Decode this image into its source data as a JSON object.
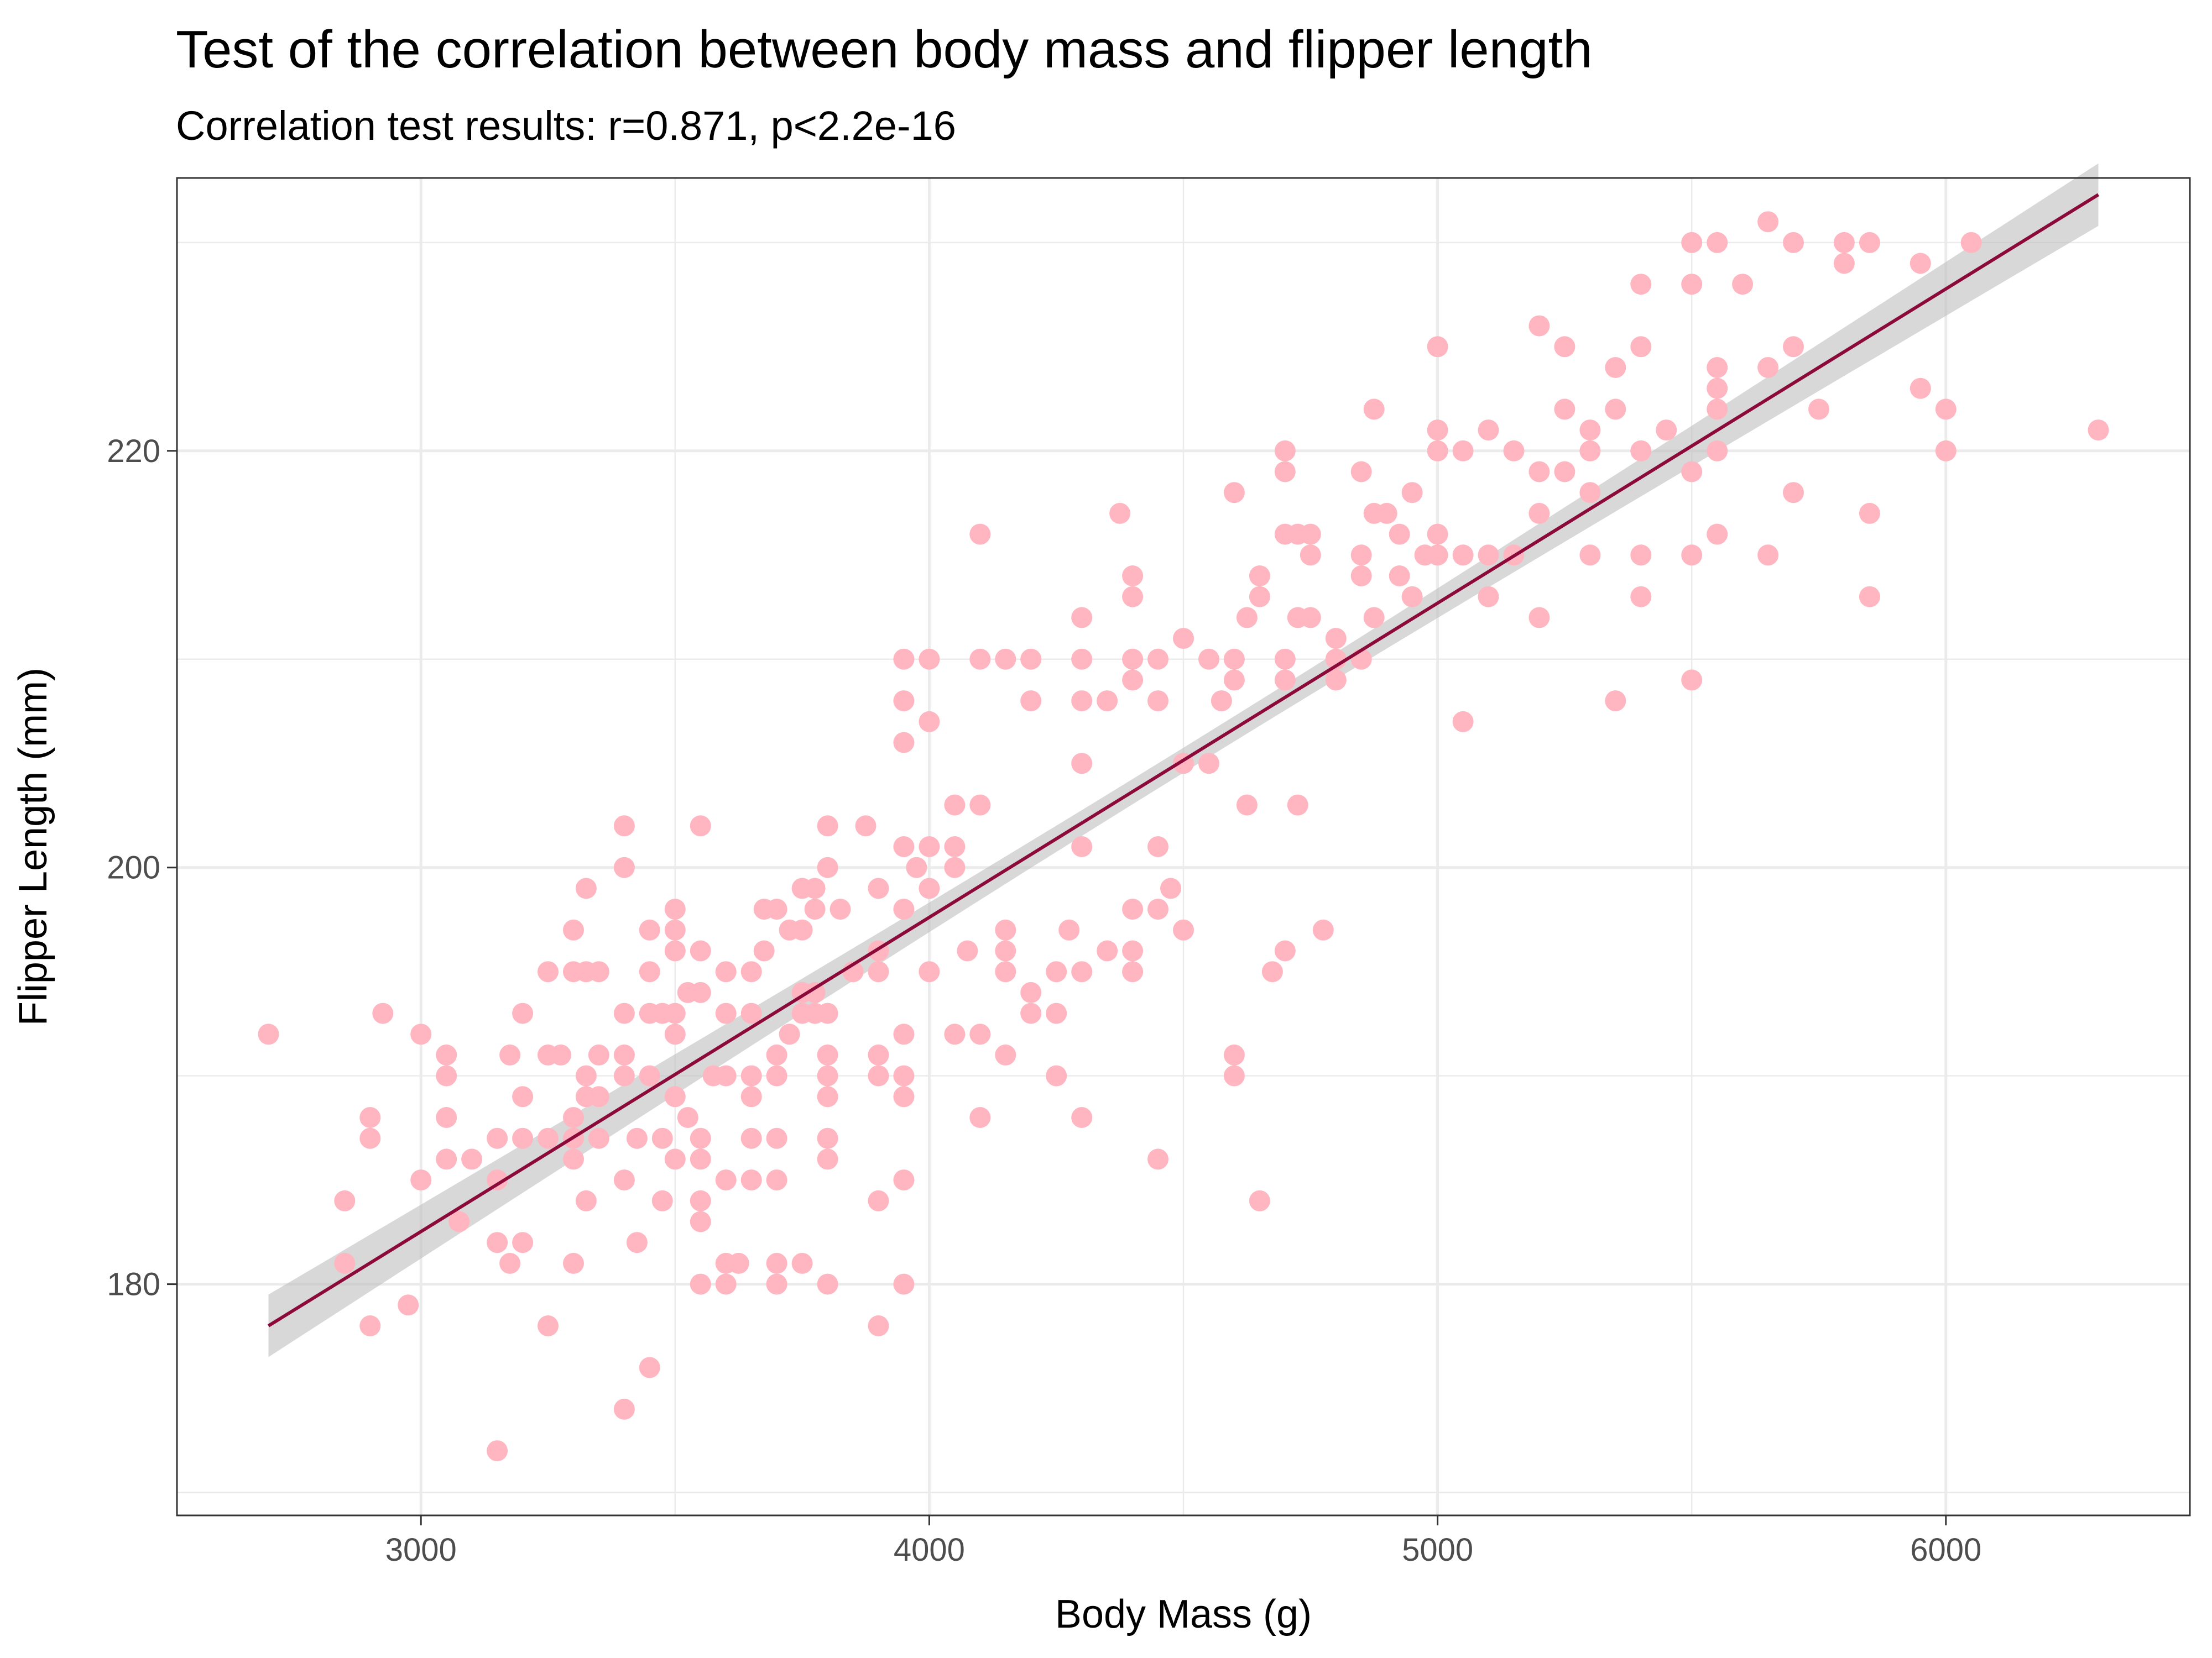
{
  "chart_data": {
    "type": "scatter",
    "title": "Test of the correlation between body mass and flipper length",
    "subtitle": "Correlation test results: r=0.871, p<2.2e-16",
    "xlabel": "Body Mass (g)",
    "ylabel": "Flipper Length (mm)",
    "xlim": [
      2520,
      6480
    ],
    "ylim": [
      168.9,
      233.1
    ],
    "x_ticks": [
      3000,
      4000,
      5000,
      6000
    ],
    "y_ticks": [
      180,
      200,
      220
    ],
    "x_tick_labels": [
      "3000",
      "4000",
      "5000",
      "6000"
    ],
    "y_tick_labels": [
      "180",
      "200",
      "220"
    ],
    "grid": true,
    "legend": "none",
    "point_color": "#FFB6C1",
    "line_color": "#8B0A3A",
    "band_color": "#BEBEBE",
    "trend_line": {
      "method": "linear",
      "x": [
        2700,
        6300
      ],
      "y": [
        178.0,
        232.3
      ],
      "ci_half_width_ends": 1.5,
      "ci_half_width_center": 0.6
    },
    "points": [
      [
        2700,
        192
      ],
      [
        2850,
        181
      ],
      [
        2850,
        184
      ],
      [
        2900,
        178
      ],
      [
        2900,
        187
      ],
      [
        2900,
        188
      ],
      [
        2925,
        193
      ],
      [
        2975,
        179
      ],
      [
        3000,
        185
      ],
      [
        3000,
        192
      ],
      [
        3050,
        186
      ],
      [
        3050,
        188
      ],
      [
        3050,
        190
      ],
      [
        3050,
        191
      ],
      [
        3075,
        183
      ],
      [
        3100,
        186
      ],
      [
        3150,
        172
      ],
      [
        3150,
        182
      ],
      [
        3150,
        185
      ],
      [
        3150,
        187
      ],
      [
        3175,
        181
      ],
      [
        3175,
        191
      ],
      [
        3200,
        182
      ],
      [
        3200,
        187
      ],
      [
        3200,
        189
      ],
      [
        3200,
        193
      ],
      [
        3250,
        178
      ],
      [
        3250,
        187
      ],
      [
        3250,
        191
      ],
      [
        3250,
        195
      ],
      [
        3275,
        191
      ],
      [
        3300,
        181
      ],
      [
        3300,
        186
      ],
      [
        3300,
        187
      ],
      [
        3300,
        188
      ],
      [
        3300,
        195
      ],
      [
        3300,
        197
      ],
      [
        3325,
        184
      ],
      [
        3325,
        189
      ],
      [
        3325,
        190
      ],
      [
        3325,
        195
      ],
      [
        3325,
        199
      ],
      [
        3350,
        187
      ],
      [
        3350,
        189
      ],
      [
        3350,
        191
      ],
      [
        3350,
        195
      ],
      [
        3400,
        174
      ],
      [
        3400,
        185
      ],
      [
        3400,
        190
      ],
      [
        3400,
        191
      ],
      [
        3400,
        193
      ],
      [
        3400,
        200
      ],
      [
        3400,
        202
      ],
      [
        3425,
        182
      ],
      [
        3425,
        187
      ],
      [
        3450,
        176
      ],
      [
        3450,
        190
      ],
      [
        3450,
        193
      ],
      [
        3450,
        195
      ],
      [
        3450,
        197
      ],
      [
        3475,
        184
      ],
      [
        3475,
        187
      ],
      [
        3475,
        193
      ],
      [
        3500,
        186
      ],
      [
        3500,
        189
      ],
      [
        3500,
        192
      ],
      [
        3500,
        193
      ],
      [
        3500,
        196
      ],
      [
        3500,
        197
      ],
      [
        3500,
        198
      ],
      [
        3525,
        188
      ],
      [
        3525,
        194
      ],
      [
        3550,
        180
      ],
      [
        3550,
        183
      ],
      [
        3550,
        184
      ],
      [
        3550,
        186
      ],
      [
        3550,
        187
      ],
      [
        3550,
        194
      ],
      [
        3550,
        196
      ],
      [
        3550,
        202
      ],
      [
        3575,
        190
      ],
      [
        3600,
        180
      ],
      [
        3600,
        181
      ],
      [
        3600,
        185
      ],
      [
        3600,
        190
      ],
      [
        3600,
        193
      ],
      [
        3600,
        195
      ],
      [
        3625,
        181
      ],
      [
        3650,
        185
      ],
      [
        3650,
        187
      ],
      [
        3650,
        189
      ],
      [
        3650,
        190
      ],
      [
        3650,
        193
      ],
      [
        3650,
        195
      ],
      [
        3675,
        196
      ],
      [
        3675,
        198
      ],
      [
        3700,
        180
      ],
      [
        3700,
        181
      ],
      [
        3700,
        185
      ],
      [
        3700,
        187
      ],
      [
        3700,
        190
      ],
      [
        3700,
        191
      ],
      [
        3700,
        198
      ],
      [
        3725,
        192
      ],
      [
        3725,
        197
      ],
      [
        3750,
        181
      ],
      [
        3750,
        193
      ],
      [
        3750,
        194
      ],
      [
        3750,
        197
      ],
      [
        3750,
        199
      ],
      [
        3775,
        193
      ],
      [
        3775,
        194
      ],
      [
        3775,
        198
      ],
      [
        3775,
        199
      ],
      [
        3800,
        180
      ],
      [
        3800,
        186
      ],
      [
        3800,
        187
      ],
      [
        3800,
        189
      ],
      [
        3800,
        190
      ],
      [
        3800,
        191
      ],
      [
        3800,
        193
      ],
      [
        3800,
        200
      ],
      [
        3800,
        202
      ],
      [
        3825,
        198
      ],
      [
        3850,
        195
      ],
      [
        3875,
        202
      ],
      [
        3900,
        178
      ],
      [
        3900,
        184
      ],
      [
        3900,
        190
      ],
      [
        3900,
        191
      ],
      [
        3900,
        195
      ],
      [
        3900,
        196
      ],
      [
        3900,
        199
      ],
      [
        3950,
        180
      ],
      [
        3950,
        185
      ],
      [
        3950,
        189
      ],
      [
        3950,
        190
      ],
      [
        3950,
        192
      ],
      [
        3950,
        198
      ],
      [
        3950,
        201
      ],
      [
        3950,
        206
      ],
      [
        3950,
        208
      ],
      [
        3950,
        210
      ],
      [
        3975,
        200
      ],
      [
        4000,
        195
      ],
      [
        4000,
        199
      ],
      [
        4000,
        201
      ],
      [
        4000,
        207
      ],
      [
        4000,
        210
      ],
      [
        4050,
        192
      ],
      [
        4050,
        200
      ],
      [
        4050,
        201
      ],
      [
        4050,
        203
      ],
      [
        4075,
        196
      ],
      [
        4100,
        188
      ],
      [
        4100,
        192
      ],
      [
        4100,
        203
      ],
      [
        4100,
        210
      ],
      [
        4100,
        216
      ],
      [
        4150,
        191
      ],
      [
        4150,
        195
      ],
      [
        4150,
        196
      ],
      [
        4150,
        197
      ],
      [
        4150,
        210
      ],
      [
        4200,
        193
      ],
      [
        4200,
        194
      ],
      [
        4200,
        208
      ],
      [
        4200,
        210
      ],
      [
        4250,
        190
      ],
      [
        4250,
        193
      ],
      [
        4250,
        195
      ],
      [
        4275,
        197
      ],
      [
        4300,
        188
      ],
      [
        4300,
        195
      ],
      [
        4300,
        201
      ],
      [
        4300,
        205
      ],
      [
        4300,
        208
      ],
      [
        4300,
        210
      ],
      [
        4300,
        212
      ],
      [
        4350,
        196
      ],
      [
        4350,
        208
      ],
      [
        4375,
        217
      ],
      [
        4400,
        195
      ],
      [
        4400,
        196
      ],
      [
        4400,
        198
      ],
      [
        4400,
        209
      ],
      [
        4400,
        210
      ],
      [
        4400,
        213
      ],
      [
        4400,
        214
      ],
      [
        4450,
        186
      ],
      [
        4450,
        198
      ],
      [
        4450,
        201
      ],
      [
        4450,
        208
      ],
      [
        4450,
        210
      ],
      [
        4475,
        199
      ],
      [
        4500,
        197
      ],
      [
        4500,
        205
      ],
      [
        4500,
        211
      ],
      [
        4550,
        205
      ],
      [
        4550,
        210
      ],
      [
        4575,
        208
      ],
      [
        4600,
        190
      ],
      [
        4600,
        191
      ],
      [
        4600,
        209
      ],
      [
        4600,
        210
      ],
      [
        4600,
        218
      ],
      [
        4625,
        203
      ],
      [
        4625,
        212
      ],
      [
        4650,
        184
      ],
      [
        4650,
        213
      ],
      [
        4650,
        214
      ],
      [
        4675,
        195
      ],
      [
        4700,
        196
      ],
      [
        4700,
        209
      ],
      [
        4700,
        210
      ],
      [
        4700,
        216
      ],
      [
        4700,
        219
      ],
      [
        4700,
        220
      ],
      [
        4725,
        203
      ],
      [
        4725,
        212
      ],
      [
        4725,
        216
      ],
      [
        4750,
        212
      ],
      [
        4750,
        215
      ],
      [
        4750,
        216
      ],
      [
        4775,
        197
      ],
      [
        4800,
        209
      ],
      [
        4800,
        210
      ],
      [
        4800,
        211
      ],
      [
        4850,
        210
      ],
      [
        4850,
        214
      ],
      [
        4850,
        215
      ],
      [
        4850,
        219
      ],
      [
        4875,
        212
      ],
      [
        4875,
        217
      ],
      [
        4875,
        222
      ],
      [
        4900,
        217
      ],
      [
        4925,
        214
      ],
      [
        4925,
        216
      ],
      [
        4950,
        213
      ],
      [
        4950,
        218
      ],
      [
        4975,
        215
      ],
      [
        5000,
        215
      ],
      [
        5000,
        216
      ],
      [
        5000,
        220
      ],
      [
        5000,
        221
      ],
      [
        5000,
        225
      ],
      [
        5050,
        207
      ],
      [
        5050,
        215
      ],
      [
        5050,
        220
      ],
      [
        5100,
        213
      ],
      [
        5100,
        215
      ],
      [
        5100,
        221
      ],
      [
        5150,
        215
      ],
      [
        5150,
        220
      ],
      [
        5200,
        212
      ],
      [
        5200,
        217
      ],
      [
        5200,
        219
      ],
      [
        5200,
        226
      ],
      [
        5250,
        219
      ],
      [
        5250,
        222
      ],
      [
        5250,
        225
      ],
      [
        5300,
        215
      ],
      [
        5300,
        218
      ],
      [
        5300,
        220
      ],
      [
        5300,
        221
      ],
      [
        5350,
        208
      ],
      [
        5350,
        222
      ],
      [
        5350,
        224
      ],
      [
        5400,
        213
      ],
      [
        5400,
        215
      ],
      [
        5400,
        220
      ],
      [
        5400,
        225
      ],
      [
        5400,
        228
      ],
      [
        5450,
        221
      ],
      [
        5500,
        209
      ],
      [
        5500,
        215
      ],
      [
        5500,
        219
      ],
      [
        5500,
        228
      ],
      [
        5500,
        230
      ],
      [
        5550,
        216
      ],
      [
        5550,
        220
      ],
      [
        5550,
        222
      ],
      [
        5550,
        223
      ],
      [
        5550,
        224
      ],
      [
        5550,
        230
      ],
      [
        5600,
        228
      ],
      [
        5650,
        215
      ],
      [
        5650,
        224
      ],
      [
        5650,
        231
      ],
      [
        5700,
        218
      ],
      [
        5700,
        225
      ],
      [
        5700,
        230
      ],
      [
        5750,
        222
      ],
      [
        5800,
        229
      ],
      [
        5800,
        230
      ],
      [
        5850,
        213
      ],
      [
        5850,
        217
      ],
      [
        5850,
        230
      ],
      [
        5950,
        223
      ],
      [
        5950,
        229
      ],
      [
        6000,
        220
      ],
      [
        6000,
        222
      ],
      [
        6050,
        230
      ],
      [
        6300,
        221
      ]
    ]
  }
}
